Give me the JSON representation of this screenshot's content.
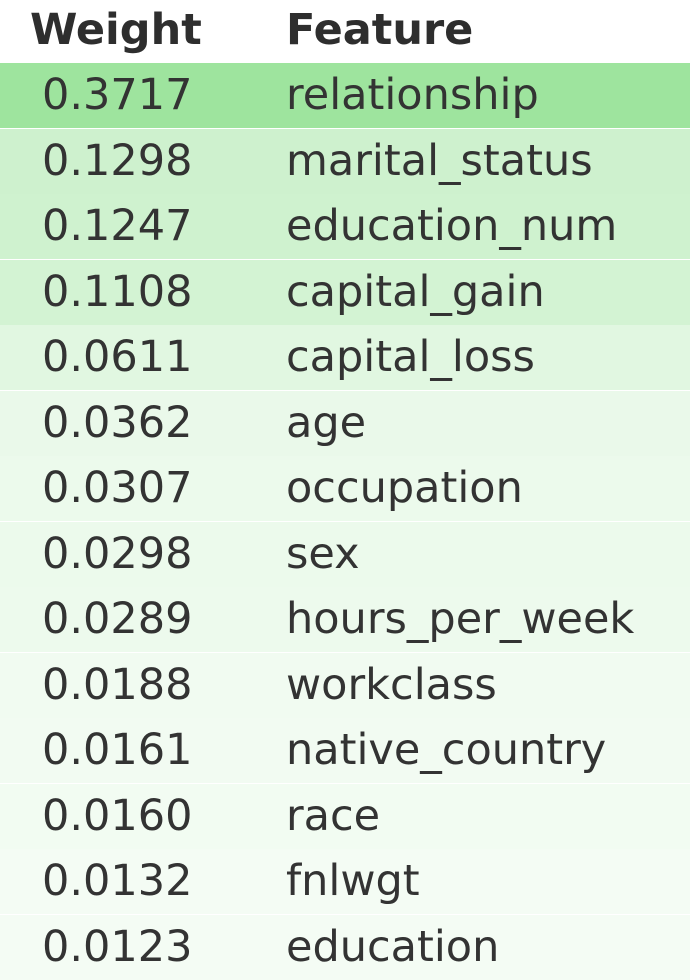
{
  "table": {
    "header": {
      "weight": "Weight",
      "feature": "Feature"
    },
    "rows": [
      {
        "weight": "0.3717",
        "feature": "relationship"
      },
      {
        "weight": "0.1298",
        "feature": "marital_status"
      },
      {
        "weight": "0.1247",
        "feature": "education_num"
      },
      {
        "weight": "0.1108",
        "feature": "capital_gain"
      },
      {
        "weight": "0.0611",
        "feature": "capital_loss"
      },
      {
        "weight": "0.0362",
        "feature": "age"
      },
      {
        "weight": "0.0307",
        "feature": "occupation"
      },
      {
        "weight": "0.0298",
        "feature": "sex"
      },
      {
        "weight": "0.0289",
        "feature": "hours_per_week"
      },
      {
        "weight": "0.0188",
        "feature": "workclass"
      },
      {
        "weight": "0.0161",
        "feature": "native_country"
      },
      {
        "weight": "0.0160",
        "feature": "race"
      },
      {
        "weight": "0.0132",
        "feature": "fnlwgt"
      },
      {
        "weight": "0.0123",
        "feature": "education"
      }
    ],
    "highlight_color": "#9ee49e"
  },
  "chart_data": {
    "type": "table",
    "columns": [
      "Weight",
      "Feature"
    ],
    "rows": [
      [
        0.3717,
        "relationship"
      ],
      [
        0.1298,
        "marital_status"
      ],
      [
        0.1247,
        "education_num"
      ],
      [
        0.1108,
        "capital_gain"
      ],
      [
        0.0611,
        "capital_loss"
      ],
      [
        0.0362,
        "age"
      ],
      [
        0.0307,
        "occupation"
      ],
      [
        0.0298,
        "sex"
      ],
      [
        0.0289,
        "hours_per_week"
      ],
      [
        0.0188,
        "workclass"
      ],
      [
        0.0161,
        "native_country"
      ],
      [
        0.016,
        "race"
      ],
      [
        0.0132,
        "fnlwgt"
      ],
      [
        0.0123,
        "education"
      ]
    ]
  }
}
